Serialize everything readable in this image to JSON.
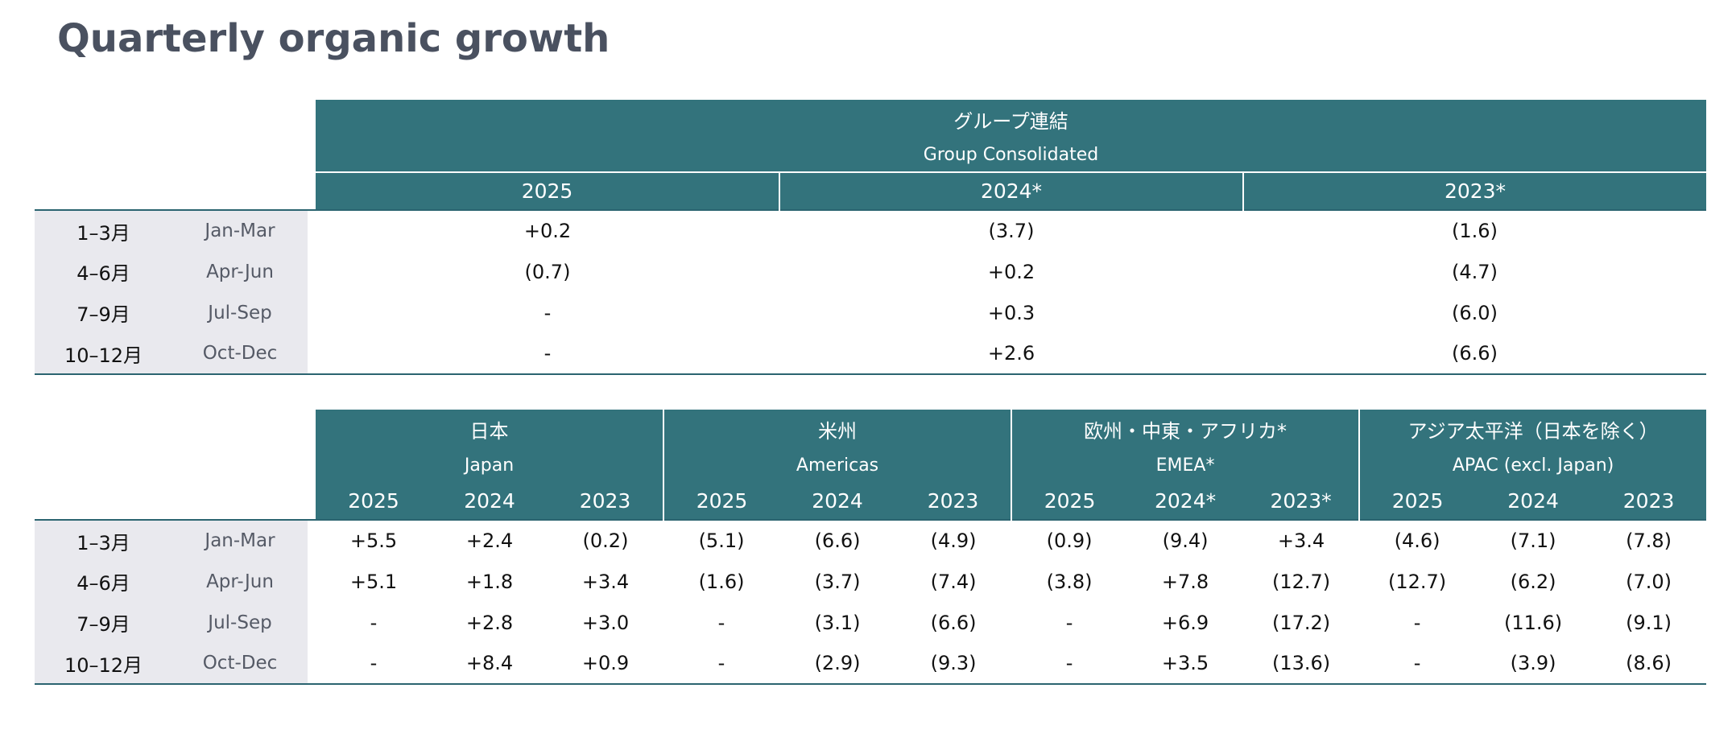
{
  "title": "Quarterly organic growth",
  "colors": {
    "header_bg": "#33737c",
    "label_bg": "#e9e9ee",
    "rule": "#2b6470",
    "title": "#4a5160"
  },
  "quarters": [
    {
      "jp": "1–3月",
      "en": "Jan-Mar"
    },
    {
      "jp": "4–6月",
      "en": "Apr-Jun"
    },
    {
      "jp": "7–9月",
      "en": "Jul-Sep"
    },
    {
      "jp": "10–12月",
      "en": "Oct-Dec"
    }
  ],
  "consolidated": {
    "name_jp": "グループ連結",
    "name_en": "Group Consolidated",
    "years": [
      "2025",
      "2024*",
      "2023*"
    ],
    "rows": [
      [
        "+0.2",
        "(3.7)",
        "(1.6)"
      ],
      [
        "(0.7)",
        "+0.2",
        "(4.7)"
      ],
      [
        "-",
        "+0.3",
        "(6.0)"
      ],
      [
        "-",
        "+2.6",
        "(6.6)"
      ]
    ]
  },
  "regions": [
    {
      "name_jp": "日本",
      "name_en": "Japan",
      "years": [
        "2025",
        "2024",
        "2023"
      ]
    },
    {
      "name_jp": "米州",
      "name_en": "Americas",
      "years": [
        "2025",
        "2024",
        "2023"
      ]
    },
    {
      "name_jp": "欧州・中東・アフリカ*",
      "name_en": "EMEA*",
      "years": [
        "2025",
        "2024*",
        "2023*"
      ]
    },
    {
      "name_jp": "アジア太平洋（日本を除く）",
      "name_en": "APAC (excl. Japan)",
      "years": [
        "2025",
        "2024",
        "2023"
      ]
    }
  ],
  "regional_rows": [
    [
      "+5.5",
      "+2.4",
      "(0.2)",
      "(5.1)",
      "(6.6)",
      "(4.9)",
      "(0.9)",
      "(9.4)",
      "+3.4",
      "(4.6)",
      "(7.1)",
      "(7.8)"
    ],
    [
      "+5.1",
      "+1.8",
      "+3.4",
      "(1.6)",
      "(3.7)",
      "(7.4)",
      "(3.8)",
      "+7.8",
      "(12.7)",
      "(12.7)",
      "(6.2)",
      "(7.0)"
    ],
    [
      "-",
      "+2.8",
      "+3.0",
      "-",
      "(3.1)",
      "(6.6)",
      "-",
      "+6.9",
      "(17.2)",
      "-",
      "(11.6)",
      "(9.1)"
    ],
    [
      "-",
      "+8.4",
      "+0.9",
      "-",
      "(2.9)",
      "(9.3)",
      "-",
      "+3.5",
      "(13.6)",
      "-",
      "(3.9)",
      "(8.6)"
    ]
  ]
}
